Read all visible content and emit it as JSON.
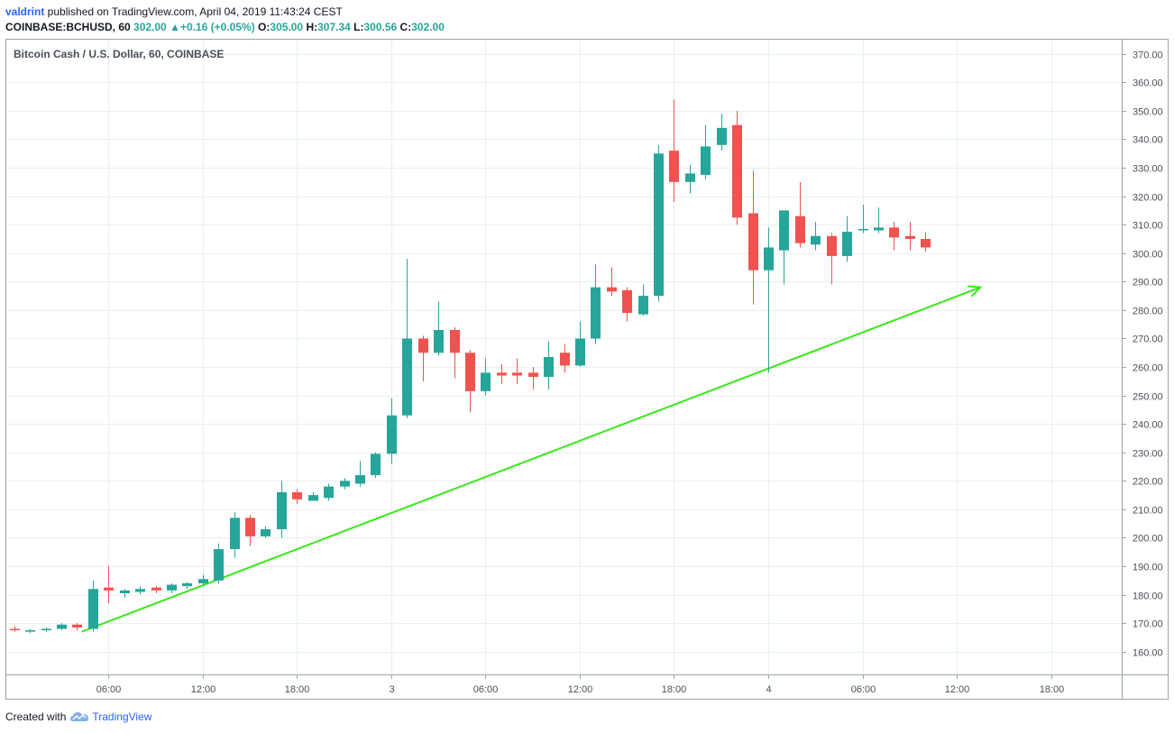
{
  "header": {
    "author": "valdrint",
    "published_text": " published on TradingView.com, April 04, 2019 11:43:24 CEST",
    "symbol": "COINBASE:BCHUSD, 60",
    "last": "302.00",
    "change": "+0.16 (+0.05%)",
    "o_label": "O:",
    "o_value": "305.00",
    "h_label": "H:",
    "h_value": "307.34",
    "l_label": "L:",
    "l_value": "300.56",
    "c_label": "C:",
    "c_value": "302.00",
    "up_arrow_icon": "triangle-up-icon"
  },
  "footer": {
    "created_with": "Created with",
    "brand": "TradingView",
    "logo_icon": "tradingview-cloud-icon"
  },
  "colors": {
    "up": "#26a69a",
    "down": "#ef5350",
    "grid": "#e8f0f0",
    "trendline": "#39e81a",
    "axis_text": "#4a4f5a"
  },
  "chart_data": {
    "type": "candlestick",
    "title": "Bitcoin Cash / U.S. Dollar, 60, COINBASE",
    "ylim": [
      152,
      375
    ],
    "y_ticks": [
      160,
      170,
      180,
      190,
      200,
      210,
      220,
      230,
      240,
      250,
      260,
      270,
      280,
      290,
      300,
      310,
      320,
      330,
      340,
      350,
      360,
      370
    ],
    "x_ticks": [
      {
        "label": "06:00",
        "t": 6
      },
      {
        "label": "12:00",
        "t": 12
      },
      {
        "label": "18:00",
        "t": 18
      },
      {
        "label": "3",
        "t": 24
      },
      {
        "label": "06:00",
        "t": 30
      },
      {
        "label": "12:00",
        "t": 36
      },
      {
        "label": "18:00",
        "t": 42
      },
      {
        "label": "4",
        "t": 48
      },
      {
        "label": "06:00",
        "t": 54
      },
      {
        "label": "12:00",
        "t": 60
      },
      {
        "label": "18:00",
        "t": 66
      }
    ],
    "xlim": [
      -0.5,
      70.5
    ],
    "candles": [
      {
        "t": 0,
        "o": 168,
        "h": 169,
        "l": 167,
        "c": 167.5
      },
      {
        "t": 1,
        "o": 167,
        "h": 168,
        "l": 166.5,
        "c": 167.5
      },
      {
        "t": 2,
        "o": 167.5,
        "h": 168.5,
        "l": 167,
        "c": 168
      },
      {
        "t": 3,
        "o": 168,
        "h": 170,
        "l": 167.5,
        "c": 169.5
      },
      {
        "t": 4,
        "o": 169.5,
        "h": 170,
        "l": 167.5,
        "c": 168.5
      },
      {
        "t": 5,
        "o": 168,
        "h": 185,
        "l": 167,
        "c": 182
      },
      {
        "t": 6,
        "o": 182.5,
        "h": 190,
        "l": 177,
        "c": 181.5
      },
      {
        "t": 7,
        "o": 180.5,
        "h": 182,
        "l": 179,
        "c": 181.5
      },
      {
        "t": 8,
        "o": 181,
        "h": 183,
        "l": 180,
        "c": 182
      },
      {
        "t": 9,
        "o": 182.5,
        "h": 183,
        "l": 180.5,
        "c": 181.5
      },
      {
        "t": 10,
        "o": 181.5,
        "h": 184,
        "l": 180.5,
        "c": 183.5
      },
      {
        "t": 11,
        "o": 183,
        "h": 184.5,
        "l": 182,
        "c": 184
      },
      {
        "t": 12,
        "o": 184,
        "h": 187,
        "l": 183,
        "c": 185.5
      },
      {
        "t": 13,
        "o": 185,
        "h": 198,
        "l": 184,
        "c": 196
      },
      {
        "t": 14,
        "o": 196,
        "h": 209,
        "l": 193,
        "c": 207
      },
      {
        "t": 15,
        "o": 207,
        "h": 208,
        "l": 197,
        "c": 200.5
      },
      {
        "t": 16,
        "o": 200.5,
        "h": 204,
        "l": 200,
        "c": 203
      },
      {
        "t": 17,
        "o": 203,
        "h": 220,
        "l": 200,
        "c": 216
      },
      {
        "t": 18,
        "o": 216,
        "h": 217,
        "l": 212,
        "c": 213.5
      },
      {
        "t": 19,
        "o": 213,
        "h": 216,
        "l": 213,
        "c": 215
      },
      {
        "t": 20,
        "o": 214,
        "h": 219,
        "l": 213,
        "c": 218
      },
      {
        "t": 21,
        "o": 218,
        "h": 221,
        "l": 217,
        "c": 220
      },
      {
        "t": 22,
        "o": 219,
        "h": 227,
        "l": 218,
        "c": 222
      },
      {
        "t": 23,
        "o": 222,
        "h": 230,
        "l": 221,
        "c": 229.5
      },
      {
        "t": 24,
        "o": 229.5,
        "h": 249,
        "l": 226,
        "c": 243
      },
      {
        "t": 25,
        "o": 243,
        "h": 298,
        "l": 242,
        "c": 270
      },
      {
        "t": 26,
        "o": 270,
        "h": 271,
        "l": 255,
        "c": 265
      },
      {
        "t": 27,
        "o": 265,
        "h": 283,
        "l": 264,
        "c": 273
      },
      {
        "t": 28,
        "o": 273,
        "h": 274,
        "l": 256,
        "c": 265
      },
      {
        "t": 29,
        "o": 265,
        "h": 266,
        "l": 244,
        "c": 251.5
      },
      {
        "t": 30,
        "o": 251.5,
        "h": 263,
        "l": 250,
        "c": 258
      },
      {
        "t": 31,
        "o": 258,
        "h": 261,
        "l": 254,
        "c": 257
      },
      {
        "t": 32,
        "o": 258,
        "h": 263,
        "l": 254,
        "c": 257
      },
      {
        "t": 33,
        "o": 258,
        "h": 260,
        "l": 252,
        "c": 256.5
      },
      {
        "t": 34,
        "o": 256.5,
        "h": 269,
        "l": 252,
        "c": 263.5
      },
      {
        "t": 35,
        "o": 265,
        "h": 268,
        "l": 258,
        "c": 260.5
      },
      {
        "t": 36,
        "o": 260.5,
        "h": 276,
        "l": 260,
        "c": 270
      },
      {
        "t": 37,
        "o": 270,
        "h": 296,
        "l": 268,
        "c": 288
      },
      {
        "t": 38,
        "o": 288,
        "h": 295,
        "l": 285,
        "c": 286.5
      },
      {
        "t": 39,
        "o": 287,
        "h": 288,
        "l": 276,
        "c": 279
      },
      {
        "t": 40,
        "o": 278.5,
        "h": 289,
        "l": 278,
        "c": 285
      },
      {
        "t": 41,
        "o": 285,
        "h": 338,
        "l": 283,
        "c": 335
      },
      {
        "t": 42,
        "o": 336,
        "h": 354,
        "l": 318,
        "c": 325
      },
      {
        "t": 43,
        "o": 325,
        "h": 331,
        "l": 321,
        "c": 328
      },
      {
        "t": 44,
        "o": 327.5,
        "h": 345,
        "l": 326,
        "c": 337.5
      },
      {
        "t": 45,
        "o": 338,
        "h": 349,
        "l": 336,
        "c": 344
      },
      {
        "t": 46,
        "o": 345,
        "h": 350,
        "l": 310,
        "c": 312.5
      },
      {
        "t": 47,
        "o": 314,
        "h": 329,
        "l": 282,
        "c": 294
      },
      {
        "t": 48,
        "o": 294,
        "h": 309,
        "l": 258,
        "c": 302
      },
      {
        "t": 49,
        "o": 301,
        "h": 315,
        "l": 289,
        "c": 315
      },
      {
        "t": 50,
        "o": 313,
        "h": 325,
        "l": 302,
        "c": 303.5
      },
      {
        "t": 51,
        "o": 303,
        "h": 311,
        "l": 301,
        "c": 306
      },
      {
        "t": 52,
        "o": 306,
        "h": 307,
        "l": 289,
        "c": 299
      },
      {
        "t": 53,
        "o": 299,
        "h": 313,
        "l": 297,
        "c": 307.5
      },
      {
        "t": 54,
        "o": 308,
        "h": 317,
        "l": 307,
        "c": 308.5
      },
      {
        "t": 55,
        "o": 308,
        "h": 316,
        "l": 307,
        "c": 309
      },
      {
        "t": 56,
        "o": 309,
        "h": 311,
        "l": 301,
        "c": 305.5
      },
      {
        "t": 57,
        "o": 306,
        "h": 311,
        "l": 301,
        "c": 305
      },
      {
        "t": 58,
        "o": 305,
        "h": 307.34,
        "l": 300.56,
        "c": 302
      }
    ],
    "trendline": {
      "from": {
        "t": 4.3,
        "price": 167
      },
      "to": {
        "t": 61.5,
        "price": 288
      },
      "arrow": true
    }
  }
}
